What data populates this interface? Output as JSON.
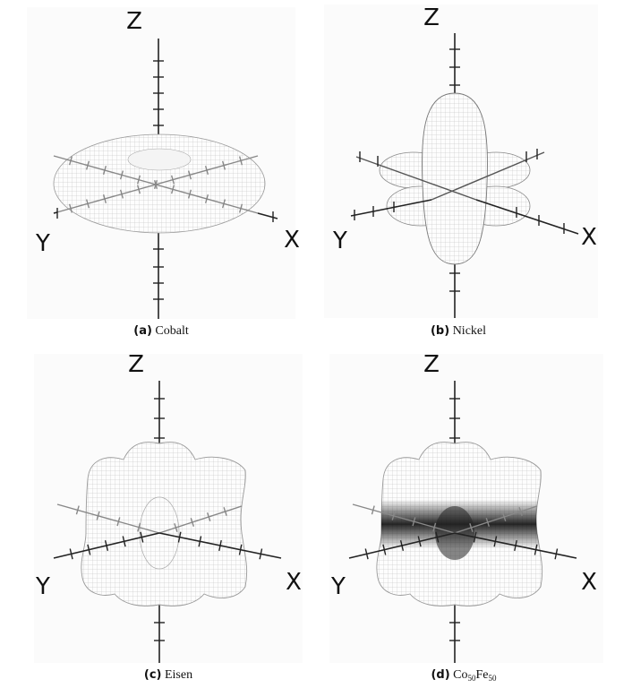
{
  "axes": {
    "x": "X",
    "y": "Y",
    "z": "Z"
  },
  "panels": [
    {
      "tag": "(a)",
      "name": "Cobalt",
      "shape": "torus"
    },
    {
      "tag": "(b)",
      "name": "Nickel",
      "shape": "lobes"
    },
    {
      "tag": "(c)",
      "name": "Eisen",
      "shape": "cube"
    },
    {
      "tag": "(d)",
      "name_main": "Co",
      "sub1": "50",
      "name_mid": "Fe",
      "sub2": "50",
      "shape": "cube-dark"
    }
  ]
}
